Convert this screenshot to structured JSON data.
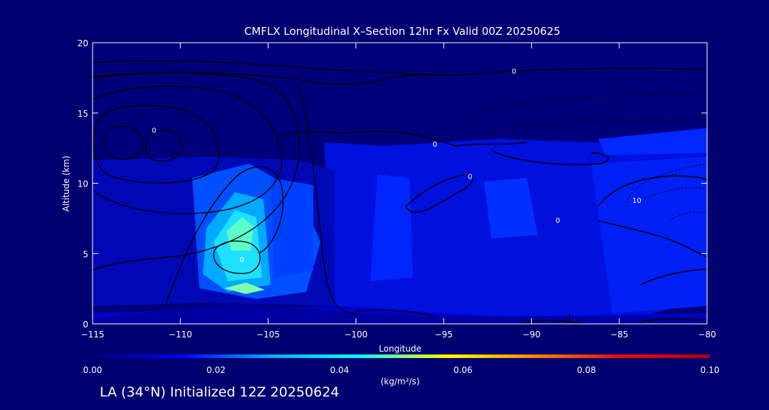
{
  "chart_data": {
    "type": "heatmap",
    "title": "CMFLX Longitudinal X–Section 12hr  Fx Valid 00Z 20250625",
    "xlabel": "Longitude",
    "ylabel": "Altitude (km)",
    "xlim": [
      -115,
      -80
    ],
    "ylim": [
      0,
      20
    ],
    "x_ticks": [
      "−115",
      "−110",
      "−105",
      "−100",
      "−95",
      "−90",
      "−85",
      "−80"
    ],
    "y_ticks": [
      "0",
      "5",
      "10",
      "15",
      "20"
    ],
    "colorbar": {
      "min": 0,
      "max": 0.1,
      "ticks": [
        "0.00",
        "0.02",
        "0.04",
        "0.06",
        "0.08",
        "0.10"
      ],
      "unit_label": "(kg/m²/s)",
      "colors": [
        "#00007a",
        "#0000ff",
        "#00aaff",
        "#00ffff",
        "#ffff00",
        "#ff8800",
        "#ff0000",
        "#aa0000"
      ]
    },
    "heat_cells": [
      {
        "lon": -108,
        "alt": 7,
        "value": 0.04
      },
      {
        "lon": -107,
        "alt": 4.5,
        "value": 0.035
      },
      {
        "lon": -106,
        "alt": 2.5,
        "value": 0.045
      },
      {
        "lon": -106,
        "alt": 9,
        "value": 0.02
      },
      {
        "lon": -103.5,
        "alt": 6,
        "value": 0.015
      },
      {
        "lon": -98,
        "alt": 9,
        "value": 0.012
      },
      {
        "lon": -97,
        "alt": 4,
        "value": 0.01
      },
      {
        "lon": -91,
        "alt": 8,
        "value": 0.013
      },
      {
        "lon": -88,
        "alt": 7,
        "value": 0.01
      },
      {
        "lon": -85.5,
        "alt": 12.3,
        "value": 0.016
      },
      {
        "lon": -81,
        "alt": 13.6,
        "value": 0.012
      },
      {
        "lon": -81,
        "alt": 6,
        "value": 0.015
      }
    ],
    "contour_labels": [
      {
        "text": "0",
        "lon": -93.5,
        "alt": 10.5
      },
      {
        "text": "0",
        "lon": -88.5,
        "alt": 7.4
      },
      {
        "text": "0",
        "lon": -95.5,
        "alt": 12.8
      },
      {
        "text": "0",
        "lon": -106.5,
        "alt": 4.6
      },
      {
        "text": "0",
        "lon": -111.5,
        "alt": 13.8
      },
      {
        "text": "0",
        "lon": -91,
        "alt": 18
      },
      {
        "text": "10",
        "lon": -84,
        "alt": 8.8
      }
    ]
  },
  "footer": {
    "text": "LA (34°N) Initialized 12Z 20250624"
  }
}
